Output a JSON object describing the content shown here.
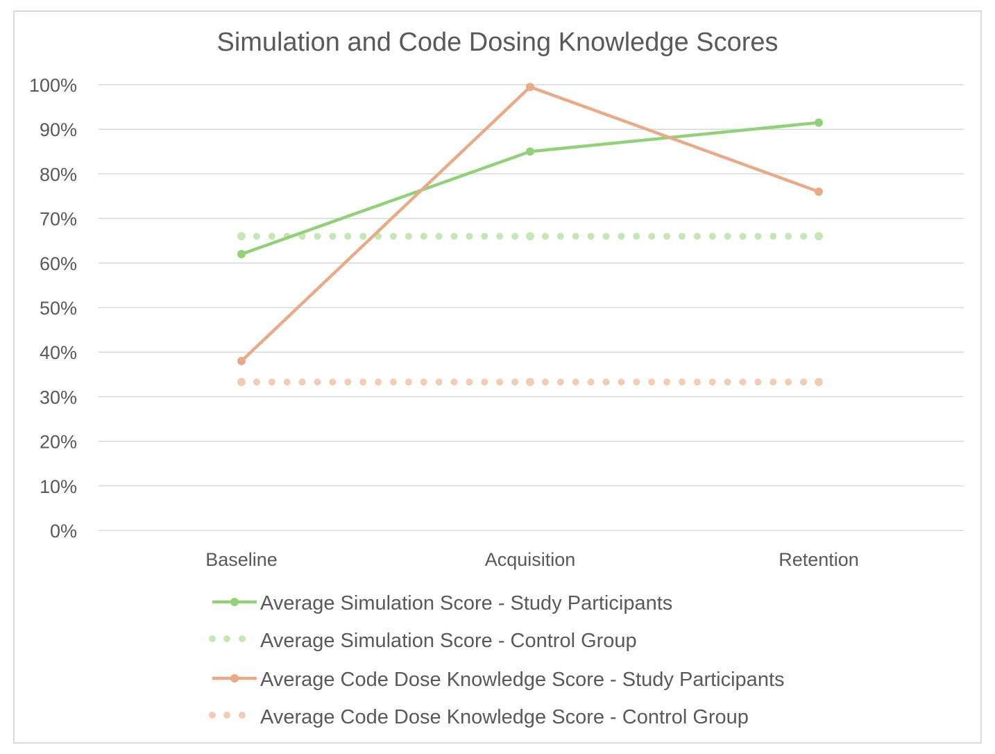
{
  "chart_data": {
    "type": "line",
    "title": "Simulation and Code Dosing Knowledge Scores",
    "xlabel": "",
    "ylabel": "",
    "categories": [
      "Baseline",
      "Acquisition",
      "Retention"
    ],
    "y_ticks": [
      "0%",
      "10%",
      "20%",
      "30%",
      "40%",
      "50%",
      "60%",
      "70%",
      "80%",
      "90%",
      "100%"
    ],
    "ylim": [
      0,
      100
    ],
    "grid": true,
    "legend_position": "bottom",
    "series": [
      {
        "name": "Average Simulation Score - Study Participants",
        "values": [
          62,
          85,
          91.5
        ],
        "color": "#93d07a",
        "style": "solid"
      },
      {
        "name": "Average Simulation Score - Control Group",
        "values": [
          66,
          66,
          66
        ],
        "color": "#c5e7b5",
        "style": "dotted"
      },
      {
        "name": "Average Code Dose Knowledge Score - Study Participants",
        "values": [
          38,
          99.5,
          76
        ],
        "color": "#e7ab87",
        "style": "solid"
      },
      {
        "name": "Average Code Dose Knowledge Score - Control Group",
        "values": [
          33.3,
          33.3,
          33.3
        ],
        "color": "#f2cdb6",
        "style": "dotted"
      }
    ]
  }
}
